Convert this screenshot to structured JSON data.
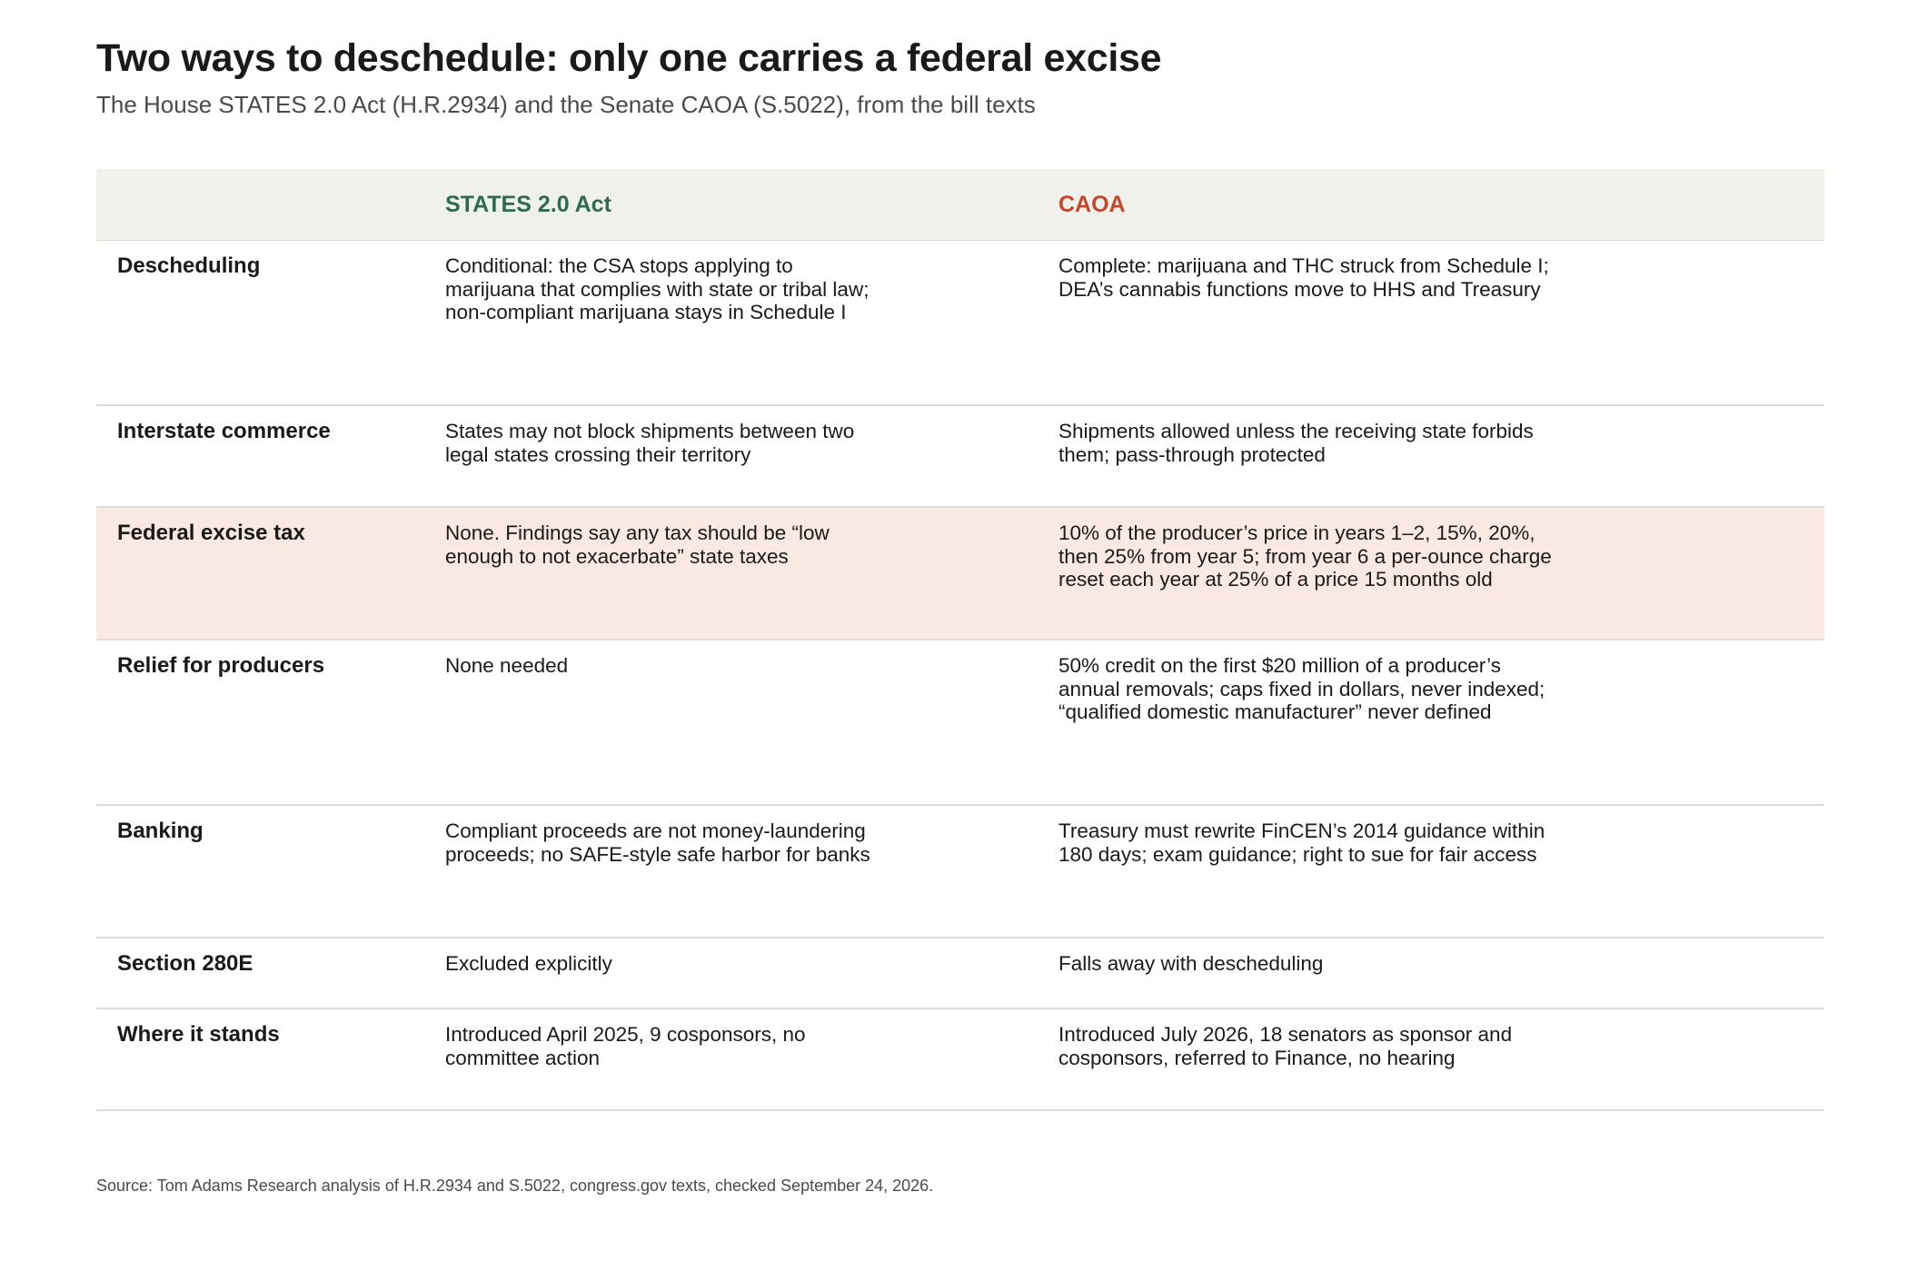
{
  "title": "Two ways to deschedule: only one carries a federal excise",
  "subtitle": "The House STATES 2.0 Act (H.R.2934) and the Senate CAOA (S.5022), from the bill texts",
  "columns": {
    "label": "",
    "states": "STATES 2.0 Act",
    "caoa": "CAOA"
  },
  "colors": {
    "states_header": "#2e6b4a",
    "caoa_header": "#c2472b",
    "header_bg": "#f1f1ec",
    "highlight_row_bg": "#f9e9e2"
  },
  "rows": [
    {
      "label": "Descheduling",
      "states": "Conditional: the CSA stops applying to marijuana that complies with state or tribal law; non-compliant marijuana stays in Schedule I",
      "caoa": "Complete: marijuana and THC struck from Schedule I; DEA’s cannabis functions move to HHS and Treasury"
    },
    {
      "label": "Interstate commerce",
      "states": "States may not block shipments between two legal states crossing their territory",
      "caoa": "Shipments allowed unless the receiving state forbids them; pass-through protected"
    },
    {
      "label": "Federal excise tax",
      "states": "None. Findings say any tax should be “low enough to not exacerbate” state taxes",
      "caoa": "10% of the producer’s price in years 1–2, 15%, 20%, then 25% from year 5; from year 6 a per-ounce charge reset each year at 25% of a price 15 months old",
      "highlighted": true
    },
    {
      "label": "Relief for producers",
      "states": "None needed",
      "caoa": "50% credit on the first $20 million of a producer’s annual removals; caps fixed in dollars, never indexed; “qualified domestic manufacturer” never defined"
    },
    {
      "label": "Banking",
      "states": "Compliant proceeds are not money-laundering proceeds; no SAFE-style safe harbor for banks",
      "caoa": "Treasury must rewrite FinCEN’s 2014 guidance within 180 days; exam guidance; right to sue for fair access"
    },
    {
      "label": "Section 280E",
      "states": "Excluded explicitly",
      "caoa": "Falls away with descheduling"
    },
    {
      "label": "Where it stands",
      "states": "Introduced April 2025, 9 cosponsors, no committee action",
      "caoa": "Introduced July 2026, 18 senators as sponsor and cosponsors, referred to Finance, no hearing"
    }
  ],
  "source": "Source: Tom Adams Research analysis of H.R.2934 and S.5022, congress.gov texts, checked September 24, 2026."
}
